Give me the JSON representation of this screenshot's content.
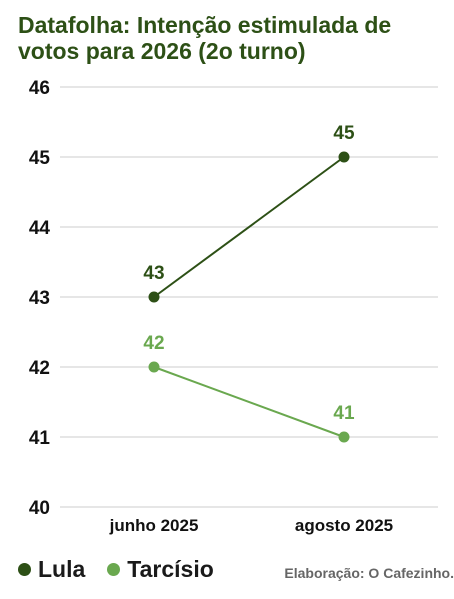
{
  "chart_data": {
    "type": "line",
    "title": "Datafolha: Intenção estimulada de votos para 2026 (2o turno)",
    "categories": [
      "junho 2025",
      "agosto 2025"
    ],
    "series": [
      {
        "name": "Lula",
        "values": [
          43,
          45
        ],
        "color": "#2d5016"
      },
      {
        "name": "Tarcísio",
        "values": [
          42,
          41
        ],
        "color": "#6aa84f"
      }
    ],
    "ylim": [
      40,
      46
    ],
    "yticks": [
      "40",
      "41",
      "42",
      "43",
      "44",
      "45",
      "46"
    ],
    "grid": true,
    "legend_position": "bottom-left",
    "source": "Elaboração: O Cafezinho."
  }
}
